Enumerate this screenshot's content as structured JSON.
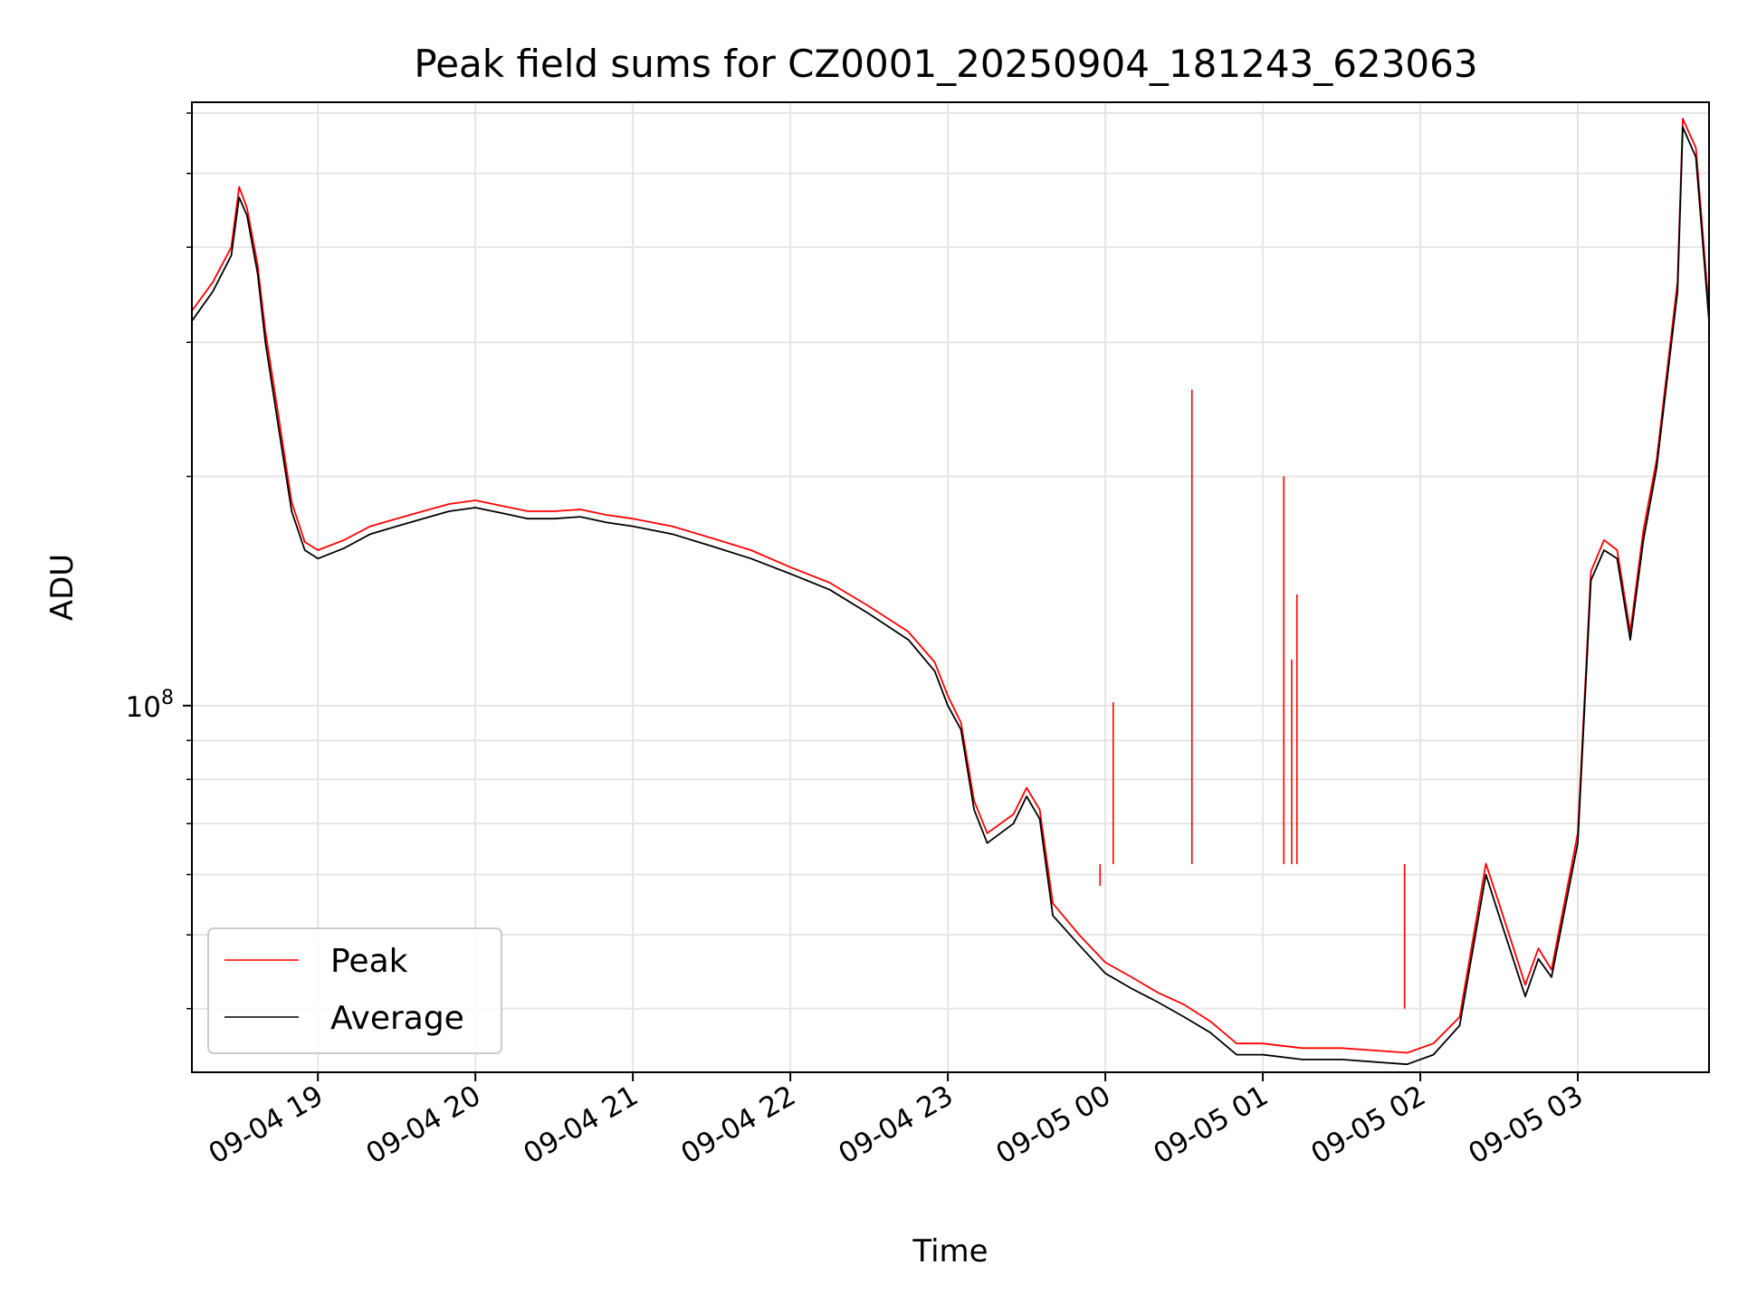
{
  "chart_data": {
    "type": "line",
    "title": "Peak field sums for CZ0001_20250904_181243_623063",
    "xlabel": "Time",
    "ylabel": "ADU",
    "yscale": "log",
    "ylim": [
      33000000,
      620000000
    ],
    "xlim": [
      "2025-09-04 18:12",
      "2025-09-05 03:50"
    ],
    "grid": true,
    "legend": "lower-left",
    "x_ticks": [
      "09-04 19",
      "09-04 20",
      "09-04 21",
      "09-04 22",
      "09-04 23",
      "09-05 00",
      "09-05 01",
      "09-05 02",
      "09-05 03"
    ],
    "y_ticks": [
      {
        "value": 100000000,
        "base": "10",
        "exp": "8"
      }
    ],
    "y_minor_ticks": [
      40000000,
      50000000,
      60000000,
      70000000,
      80000000,
      90000000,
      200000000,
      300000000,
      400000000,
      500000000,
      600000000
    ],
    "series": [
      {
        "name": "Peak",
        "color": "#ff0000",
        "x": [
          "2025-09-04 18:12",
          "2025-09-04 18:20",
          "2025-09-04 18:27",
          "2025-09-04 18:30",
          "2025-09-04 18:33",
          "2025-09-04 18:37",
          "2025-09-04 18:40",
          "2025-09-04 18:45",
          "2025-09-04 18:50",
          "2025-09-04 18:55",
          "2025-09-04 19:00",
          "2025-09-04 19:10",
          "2025-09-04 19:20",
          "2025-09-04 19:30",
          "2025-09-04 19:40",
          "2025-09-04 19:50",
          "2025-09-04 20:00",
          "2025-09-04 20:10",
          "2025-09-04 20:20",
          "2025-09-04 20:30",
          "2025-09-04 20:40",
          "2025-09-04 20:50",
          "2025-09-04 21:00",
          "2025-09-04 21:15",
          "2025-09-04 21:30",
          "2025-09-04 21:45",
          "2025-09-04 22:00",
          "2025-09-04 22:15",
          "2025-09-04 22:30",
          "2025-09-04 22:45",
          "2025-09-04 22:55",
          "2025-09-04 23:00",
          "2025-09-04 23:05",
          "2025-09-04 23:10",
          "2025-09-04 23:15",
          "2025-09-04 23:25",
          "2025-09-04 23:30",
          "2025-09-04 23:35",
          "2025-09-04 23:40",
          "2025-09-04 23:50",
          "2025-09-05 00:00",
          "2025-09-05 00:10",
          "2025-09-05 00:20",
          "2025-09-05 00:30",
          "2025-09-05 00:40",
          "2025-09-05 00:50",
          "2025-09-05 01:00",
          "2025-09-05 01:15",
          "2025-09-05 01:30",
          "2025-09-05 01:45",
          "2025-09-05 01:55",
          "2025-09-05 02:05",
          "2025-09-05 02:15",
          "2025-09-05 02:25",
          "2025-09-05 02:30",
          "2025-09-05 02:40",
          "2025-09-05 02:45",
          "2025-09-05 02:50",
          "2025-09-05 03:00",
          "2025-09-05 03:05",
          "2025-09-05 03:10",
          "2025-09-05 03:15",
          "2025-09-05 03:20",
          "2025-09-05 03:25",
          "2025-09-05 03:30",
          "2025-09-05 03:38",
          "2025-09-05 03:40",
          "2025-09-05 03:45",
          "2025-09-05 03:50"
        ],
        "y": [
          330000000,
          360000000,
          400000000,
          480000000,
          450000000,
          380000000,
          310000000,
          240000000,
          185000000,
          164000000,
          160000000,
          165000000,
          172000000,
          176000000,
          180000000,
          184000000,
          186000000,
          183000000,
          180000000,
          180000000,
          181000000,
          178000000,
          176000000,
          172000000,
          166000000,
          160000000,
          152000000,
          145000000,
          135000000,
          125000000,
          114000000,
          103000000,
          95000000,
          75000000,
          68000000,
          72000000,
          78000000,
          73000000,
          55000000,
          50000000,
          46000000,
          44000000,
          42000000,
          40500000,
          38500000,
          36000000,
          36000000,
          35500000,
          35500000,
          35200000,
          35000000,
          36000000,
          39000000,
          62000000,
          55000000,
          43000000,
          48000000,
          45000000,
          68000000,
          150000000,
          165000000,
          160000000,
          125000000,
          170000000,
          210000000,
          360000000,
          590000000,
          540000000,
          330000000
        ],
        "spikes": [
          {
            "x": "2025-09-04 23:58",
            "y": 58000000
          },
          {
            "x": "2025-09-05 00:03",
            "y": 101000000
          },
          {
            "x": "2025-09-05 00:33",
            "y": 260000000
          },
          {
            "x": "2025-09-05 01:08",
            "y": 200000000
          },
          {
            "x": "2025-09-05 01:11",
            "y": 115000000
          },
          {
            "x": "2025-09-05 01:13",
            "y": 140000000
          },
          {
            "x": "2025-09-05 01:54",
            "y": 40000000
          }
        ]
      },
      {
        "name": "Average",
        "color": "#000000",
        "x": [
          "2025-09-04 18:12",
          "2025-09-04 18:20",
          "2025-09-04 18:27",
          "2025-09-04 18:30",
          "2025-09-04 18:33",
          "2025-09-04 18:37",
          "2025-09-04 18:40",
          "2025-09-04 18:45",
          "2025-09-04 18:50",
          "2025-09-04 18:55",
          "2025-09-04 19:00",
          "2025-09-04 19:10",
          "2025-09-04 19:20",
          "2025-09-04 19:30",
          "2025-09-04 19:40",
          "2025-09-04 19:50",
          "2025-09-04 20:00",
          "2025-09-04 20:10",
          "2025-09-04 20:20",
          "2025-09-04 20:30",
          "2025-09-04 20:40",
          "2025-09-04 20:50",
          "2025-09-04 21:00",
          "2025-09-04 21:15",
          "2025-09-04 21:30",
          "2025-09-04 21:45",
          "2025-09-04 22:00",
          "2025-09-04 22:15",
          "2025-09-04 22:30",
          "2025-09-04 22:45",
          "2025-09-04 22:55",
          "2025-09-04 23:00",
          "2025-09-04 23:05",
          "2025-09-04 23:10",
          "2025-09-04 23:15",
          "2025-09-04 23:25",
          "2025-09-04 23:30",
          "2025-09-04 23:35",
          "2025-09-04 23:40",
          "2025-09-04 23:50",
          "2025-09-05 00:00",
          "2025-09-05 00:10",
          "2025-09-05 00:20",
          "2025-09-05 00:30",
          "2025-09-05 00:40",
          "2025-09-05 00:50",
          "2025-09-05 01:00",
          "2025-09-05 01:15",
          "2025-09-05 01:30",
          "2025-09-05 01:45",
          "2025-09-05 01:55",
          "2025-09-05 02:05",
          "2025-09-05 02:15",
          "2025-09-05 02:25",
          "2025-09-05 02:30",
          "2025-09-05 02:40",
          "2025-09-05 02:45",
          "2025-09-05 02:50",
          "2025-09-05 03:00",
          "2025-09-05 03:05",
          "2025-09-05 03:10",
          "2025-09-05 03:15",
          "2025-09-05 03:20",
          "2025-09-05 03:25",
          "2025-09-05 03:30",
          "2025-09-05 03:38",
          "2025-09-05 03:40",
          "2025-09-05 03:45",
          "2025-09-05 03:50"
        ],
        "y": [
          320000000,
          350000000,
          390000000,
          465000000,
          440000000,
          370000000,
          300000000,
          232000000,
          180000000,
          160000000,
          156000000,
          161000000,
          168000000,
          172000000,
          176000000,
          180000000,
          182000000,
          179000000,
          176000000,
          176000000,
          177000000,
          174000000,
          172000000,
          168000000,
          162000000,
          156000000,
          149000000,
          142000000,
          132000000,
          122000000,
          111000000,
          100000000,
          93000000,
          73000000,
          66000000,
          70000000,
          76000000,
          71000000,
          53000000,
          48500000,
          44500000,
          42500000,
          40800000,
          39000000,
          37200000,
          34800000,
          34800000,
          34300000,
          34300000,
          34000000,
          33800000,
          34800000,
          38000000,
          60000000,
          53000000,
          41500000,
          46500000,
          44000000,
          66000000,
          146000000,
          160000000,
          156000000,
          122000000,
          165000000,
          205000000,
          350000000,
          575000000,
          525000000,
          320000000
        ]
      }
    ]
  }
}
